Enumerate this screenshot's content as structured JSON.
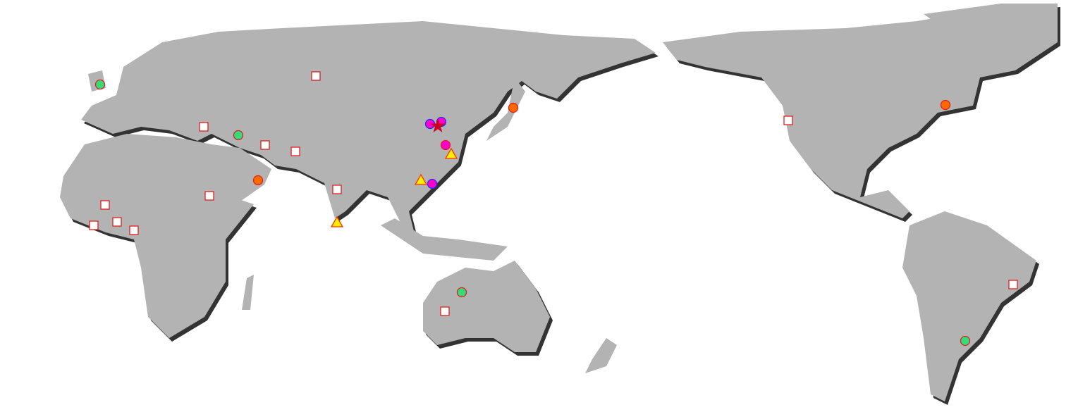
{
  "map": {
    "land_color": "#b3b3b3",
    "shadow_color": "#333333",
    "marker_styles": {
      "square": {
        "fill": "#ffffff",
        "stroke": "#e02020"
      },
      "green-circle": {
        "fill": "#33dd77",
        "stroke": "#e02020"
      },
      "orange-circle": {
        "fill": "#ff6a00",
        "stroke": "#e02020"
      },
      "magenta-circle-blue": {
        "fill": "#ff00cc",
        "stroke": "#2030ff"
      },
      "magenta-circle-red": {
        "fill": "#ff00cc",
        "stroke": "#e02020"
      },
      "star": {
        "fill": "#cc0022",
        "stroke": "#cc0022"
      },
      "triangle": {
        "fill": "#ffee00",
        "stroke": "#ff3300"
      }
    }
  }
}
